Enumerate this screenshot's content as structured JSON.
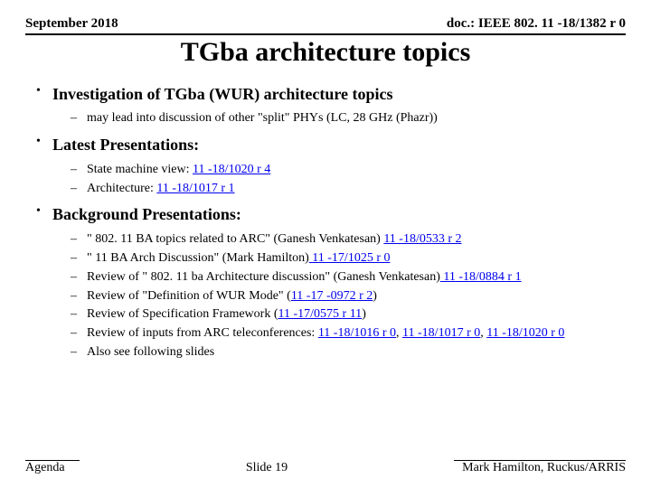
{
  "header": {
    "date": "September 2018",
    "doc": "doc.: IEEE 802. 11 -18/1382 r 0"
  },
  "title": "TGba architecture topics",
  "sections": [
    {
      "heading": "Investigation of TGba (WUR) architecture topics",
      "items": [
        {
          "prefix": "may lead into discussion of other \"split\" PHYs (LC, 28 GHz (Phazr))"
        }
      ]
    },
    {
      "heading": "Latest Presentations:",
      "items": [
        {
          "prefix": "State machine view: ",
          "link": "11 -18/1020 r 4"
        },
        {
          "prefix": "Architecture: ",
          "link": "11 -18/1017 r 1"
        }
      ]
    },
    {
      "heading": "Background Presentations:",
      "items": [
        {
          "prefix": "\" 802. 11 BA topics related to ARC\" (Ganesh Venkatesan) ",
          "link": "11 -18/0533 r 2"
        },
        {
          "prefix": "\" 11 BA Arch Discussion\" (Mark Hamilton)",
          "link": " 11 -17/1025 r 0"
        },
        {
          "prefix": "Review of \" 802. 11 ba Architecture discussion\" (Ganesh Venkatesan)",
          "link": " 11 -18/0884 r 1"
        },
        {
          "prefix": "Review of \"Definition of WUR Mode\" (",
          "link": "11 -17 -0972 r 2",
          "suffix": ")"
        },
        {
          "prefix": "Review of Specification Framework (",
          "link": "11 -17/0575 r 11",
          "suffix": ")"
        },
        {
          "prefix": "Review of inputs from ARC teleconferences: ",
          "link": "11 -18/1016 r 0",
          "mid1": ", ",
          "link2": "11 -18/1017 r 0",
          "mid2": ", ",
          "link3": "11 -18/1020 r 0"
        },
        {
          "prefix": "Also see following slides"
        }
      ]
    }
  ],
  "footer": {
    "left": "Agenda",
    "center": "Slide 19",
    "right": "Mark Hamilton, Ruckus/ARRIS"
  }
}
